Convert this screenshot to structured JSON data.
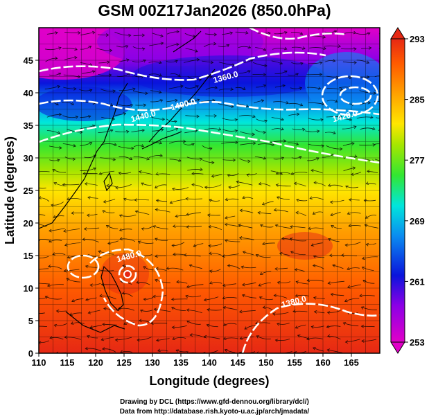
{
  "title": "GSM 00Z17Jan2026 (850.0hPa)",
  "x_axis": {
    "label": "Longitude (degrees)",
    "ticks": [
      "110",
      "115",
      "120",
      "125",
      "130",
      "135",
      "140",
      "145",
      "150",
      "155",
      "160",
      "165"
    ],
    "range": [
      110,
      170
    ]
  },
  "y_axis": {
    "label": "Latitude  (degrees)",
    "ticks": [
      "0",
      "5",
      "10",
      "15",
      "20",
      "25",
      "30",
      "35",
      "40",
      "45"
    ],
    "range": [
      0,
      50
    ]
  },
  "colorbar": {
    "ticks": [
      "253",
      "261",
      "269",
      "277",
      "285",
      "293"
    ],
    "range": [
      253,
      293
    ],
    "colors": [
      "#e100c8",
      "#8c00e6",
      "#0a14dc",
      "#0a8cf0",
      "#00e6dc",
      "#32e632",
      "#a5e600",
      "#ffe600",
      "#ffa000",
      "#ff5a00",
      "#e62814"
    ]
  },
  "contour_labels": [
    {
      "text": "1360.0",
      "lon": 143,
      "lat": 42
    },
    {
      "text": "1400.0",
      "lon": 135.5,
      "lat": 37.8
    },
    {
      "text": "1440.0",
      "lon": 128.5,
      "lat": 36
    },
    {
      "text": "1420.0",
      "lon": 164,
      "lat": 36
    },
    {
      "text": "1480.0",
      "lon": 126,
      "lat": 14.5
    },
    {
      "text": "1380.0",
      "lon": 155,
      "lat": 7.5
    }
  ],
  "credits": {
    "line1": "Drawing by DCL (https://www.gfd-dennou.org/library/dcl/)",
    "line2": "Data from http://database.rish.kyoto-u.ac.jp/arch/jmadata/"
  }
}
